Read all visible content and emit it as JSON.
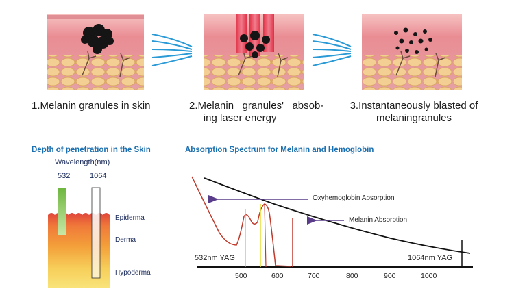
{
  "steps": [
    {
      "caption_lines": [
        "1.Melanin granules in skin"
      ]
    },
    {
      "caption_lines": [
        "2.Melanin   granules'   absob-",
        "ing laser energy"
      ]
    },
    {
      "caption_lines": [
        "3.Instantaneously blasted of",
        "melaningranules"
      ]
    }
  ],
  "penetration": {
    "title": "Depth of penetration in the Skin",
    "wavelength_label": "Wavelength(nm)",
    "wavelengths": [
      "532",
      "1064"
    ],
    "layers": [
      "Epiderma",
      "Derma",
      "Hypoderma"
    ],
    "colors": {
      "epiderma": "#e0463a",
      "derma": "#f39a3a",
      "hypoderma": "#f7dd6a",
      "green_beam": "#7fbf4a"
    }
  },
  "spectrum": {
    "title": "Absorption Spectrum for Melanin and Hemoglobin",
    "labels": {
      "oxy": "Oxyhemoglobin Absorption",
      "melanin": "Melanin Absorption",
      "yag532": "532nm YAG",
      "yag1064": "1064nm YAG"
    },
    "x_ticks": [
      "500",
      "600",
      "700",
      "800",
      "900",
      "1000"
    ],
    "colors": {
      "melanin_curve": "#000000",
      "hemoglobin_curve": "#c0392b",
      "arrow": "#5a3d8a",
      "line_532": "#9bd05a",
      "line_yellow": "#e8e03a"
    }
  }
}
